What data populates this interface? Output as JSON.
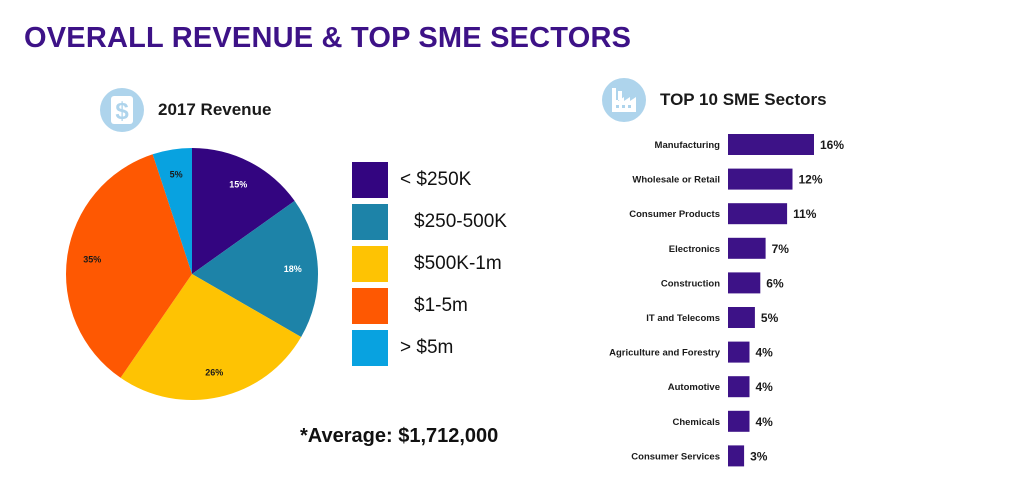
{
  "title": "OVERALL REVENUE & TOP SME SECTORS",
  "colors": {
    "title": "#3d1287",
    "bar": "#3d1287",
    "icon_bg": "#aed4ec"
  },
  "revenue": {
    "icon": "dollar-icon",
    "heading": "2017 Revenue",
    "average_note": "*Average: $1,712,000"
  },
  "sectors": {
    "icon": "factory-icon",
    "heading": "TOP 10 SME Sectors"
  },
  "chart_data": [
    {
      "type": "pie",
      "title": "2017 Revenue",
      "categories": [
        "< $250K",
        "$250-500K",
        "$500K-1m",
        "$1-5m",
        "> $5m"
      ],
      "values": [
        15,
        18,
        26,
        35,
        5
      ],
      "value_labels": [
        "15%",
        "18%",
        "26%",
        "35%",
        "5%"
      ],
      "colors": [
        "#330580",
        "#1d83a8",
        "#fec303",
        "#fe5802",
        "#08a2e0"
      ],
      "legend": "right"
    },
    {
      "type": "bar",
      "orientation": "horizontal",
      "title": "TOP 10 SME Sectors",
      "categories": [
        "Manufacturing",
        "Wholesale or Retail",
        "Consumer Products",
        "Electronics",
        "Construction",
        "IT and Telecoms",
        "Agriculture and Forestry",
        "Automotive",
        "Chemicals",
        "Consumer Services"
      ],
      "values": [
        16,
        12,
        11,
        7,
        6,
        5,
        4,
        4,
        4,
        3
      ],
      "value_labels": [
        "16%",
        "12%",
        "11%",
        "7%",
        "6%",
        "5%",
        "4%",
        "4%",
        "4%",
        "3%"
      ],
      "xlim": [
        0,
        16
      ],
      "color": "#3d1287"
    }
  ]
}
